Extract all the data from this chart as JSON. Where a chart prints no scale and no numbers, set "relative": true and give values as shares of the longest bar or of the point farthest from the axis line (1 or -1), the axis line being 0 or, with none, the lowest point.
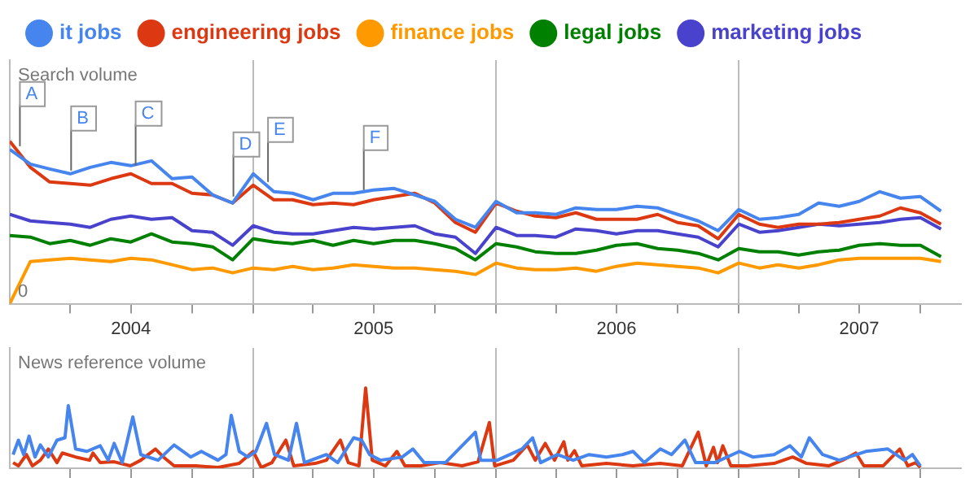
{
  "chart_data": [
    {
      "type": "line",
      "relative": true,
      "legend": "top",
      "grid": "x",
      "tick_labels": "x",
      "xlim": [
        "2004-01",
        "2007-12"
      ],
      "xticks": [
        {
          "value": "2004-04",
          "label": null
        },
        {
          "value": "2004-07",
          "label": "2004"
        },
        {
          "value": "2004-10",
          "label": null
        },
        {
          "value": "2005-01",
          "label": null
        },
        {
          "value": "2005-04",
          "label": null
        },
        {
          "value": "2005-07",
          "label": "2005"
        },
        {
          "value": "2005-10",
          "label": null
        },
        {
          "value": "2006-01",
          "label": null
        },
        {
          "value": "2006-04",
          "label": null
        },
        {
          "value": "2006-07",
          "label": "2006"
        },
        {
          "value": "2006-10",
          "label": null
        },
        {
          "value": "2007-01",
          "label": null
        },
        {
          "value": "2007-04",
          "label": null
        },
        {
          "value": "2007-07",
          "label": "2007"
        },
        {
          "value": "2007-10",
          "label": null
        }
      ],
      "x": [
        "2004-01",
        "2004-02",
        "2004-03",
        "2004-04",
        "2004-05",
        "2004-06",
        "2004-07",
        "2004-08",
        "2004-09",
        "2004-10",
        "2004-11",
        "2004-12",
        "2005-01",
        "2005-02",
        "2005-03",
        "2005-04",
        "2005-05",
        "2005-06",
        "2005-07",
        "2005-08",
        "2005-09",
        "2005-10",
        "2005-11",
        "2005-12",
        "2006-01",
        "2006-02",
        "2006-03",
        "2006-04",
        "2006-05",
        "2006-06",
        "2006-07",
        "2006-08",
        "2006-09",
        "2006-10",
        "2006-11",
        "2006-12",
        "2007-01",
        "2007-02",
        "2007-03",
        "2007-04",
        "2007-05",
        "2007-06",
        "2007-07",
        "2007-08",
        "2007-09",
        "2007-10",
        "2007-11"
      ],
      "series": [
        {
          "name": "it jobs",
          "color": "#4684ee",
          "values": [
            0.95,
            0.86,
            0.83,
            0.8,
            0.84,
            0.87,
            0.85,
            0.88,
            0.77,
            0.78,
            0.67,
            0.62,
            0.8,
            0.69,
            0.68,
            0.64,
            0.68,
            0.68,
            0.7,
            0.71,
            0.67,
            0.63,
            0.52,
            0.47,
            0.63,
            0.56,
            0.56,
            0.55,
            0.59,
            0.58,
            0.58,
            0.6,
            0.59,
            0.55,
            0.51,
            0.45,
            0.58,
            0.52,
            0.53,
            0.55,
            0.62,
            0.6,
            0.63,
            0.69,
            0.65,
            0.66,
            0.57
          ]
        },
        {
          "name": "engineering jobs",
          "color": "#dc3912",
          "values": [
            1,
            0.84,
            0.75,
            0.74,
            0.73,
            0.77,
            0.8,
            0.74,
            0.74,
            0.68,
            0.67,
            0.62,
            0.73,
            0.64,
            0.64,
            0.61,
            0.62,
            0.61,
            0.64,
            0.66,
            0.68,
            0.62,
            0.5,
            0.44,
            0.62,
            0.57,
            0.54,
            0.53,
            0.56,
            0.52,
            0.52,
            0.52,
            0.55,
            0.5,
            0.48,
            0.4,
            0.55,
            0.49,
            0.47,
            0.49,
            0.49,
            0.5,
            0.52,
            0.54,
            0.59,
            0.56,
            0.49
          ]
        },
        {
          "name": "finance jobs",
          "color": "#ff9900",
          "values": [
            0,
            0.26,
            0.27,
            0.28,
            0.27,
            0.26,
            0.28,
            0.27,
            0.24,
            0.21,
            0.22,
            0.19,
            0.22,
            0.21,
            0.23,
            0.21,
            0.22,
            0.24,
            0.23,
            0.22,
            0.22,
            0.21,
            0.2,
            0.18,
            0.25,
            0.22,
            0.21,
            0.21,
            0.22,
            0.2,
            0.23,
            0.25,
            0.24,
            0.23,
            0.22,
            0.19,
            0.25,
            0.22,
            0.24,
            0.22,
            0.24,
            0.27,
            0.28,
            0.28,
            0.28,
            0.28,
            0.26
          ]
        },
        {
          "name": "legal jobs",
          "color": "#008000",
          "values": [
            0.42,
            0.41,
            0.37,
            0.39,
            0.36,
            0.4,
            0.38,
            0.43,
            0.38,
            0.37,
            0.35,
            0.27,
            0.4,
            0.38,
            0.37,
            0.39,
            0.36,
            0.39,
            0.37,
            0.39,
            0.39,
            0.37,
            0.34,
            0.27,
            0.37,
            0.35,
            0.32,
            0.31,
            0.31,
            0.33,
            0.36,
            0.37,
            0.34,
            0.33,
            0.31,
            0.27,
            0.34,
            0.32,
            0.32,
            0.3,
            0.32,
            0.33,
            0.36,
            0.37,
            0.36,
            0.36,
            0.29
          ]
        },
        {
          "name": "marketing jobs",
          "color": "#4942cc",
          "values": [
            0.55,
            0.51,
            0.5,
            0.49,
            0.47,
            0.52,
            0.54,
            0.52,
            0.53,
            0.45,
            0.44,
            0.36,
            0.48,
            0.44,
            0.43,
            0.43,
            0.45,
            0.47,
            0.46,
            0.47,
            0.48,
            0.43,
            0.41,
            0.31,
            0.47,
            0.42,
            0.42,
            0.41,
            0.46,
            0.45,
            0.43,
            0.45,
            0.45,
            0.43,
            0.41,
            0.35,
            0.49,
            0.44,
            0.45,
            0.47,
            0.49,
            0.48,
            0.49,
            0.5,
            0.52,
            0.53,
            0.46
          ]
        }
      ],
      "annotations": [
        "Search volume",
        "0",
        {
          "text": "A",
          "x": "2004-01-15",
          "y": 0.97
        },
        {
          "text": "B",
          "x": "2004-04-01",
          "y": 0.82
        },
        {
          "text": "C",
          "x": "2004-07-07",
          "y": 0.85
        },
        {
          "text": "D",
          "x": "2004-12-01",
          "y": 0.66
        },
        {
          "text": "E",
          "x": "2005-01-22",
          "y": 0.75
        },
        {
          "text": "F",
          "x": "2005-06-15",
          "y": 0.7
        }
      ]
    },
    {
      "type": "line",
      "relative": true,
      "grid": "x",
      "tick_labels": false,
      "xlim": [
        "2004-01",
        "2007-12"
      ],
      "xticks": [
        {
          "value": "2004-04",
          "label": null
        },
        {
          "value": "2004-07",
          "label": null
        },
        {
          "value": "2004-10",
          "label": null
        },
        {
          "value": "2005-01",
          "label": null
        },
        {
          "value": "2005-04",
          "label": null
        },
        {
          "value": "2005-07",
          "label": null
        },
        {
          "value": "2005-10",
          "label": null
        },
        {
          "value": "2006-01",
          "label": null
        },
        {
          "value": "2006-04",
          "label": null
        },
        {
          "value": "2006-07",
          "label": null
        },
        {
          "value": "2006-10",
          "label": null
        },
        {
          "value": "2007-01",
          "label": null
        },
        {
          "value": "2007-04",
          "label": null
        },
        {
          "value": "2007-07",
          "label": null
        },
        {
          "value": "2007-10",
          "label": null
        }
      ],
      "series": [
        {
          "color": "#4684ee",
          "x": [
            "2004-01-06",
            "2004-01-14",
            "2004-01-22",
            "2004-01-30",
            "2004-02-08",
            "2004-02-16",
            "2004-02-28",
            "2004-03-12",
            "2004-03-24",
            "2004-03-29",
            "2004-04-09",
            "2004-04-26",
            "2004-05-16",
            "2004-05-28",
            "2004-06-06",
            "2004-06-18",
            "2004-07-04",
            "2004-07-16",
            "2004-08-11",
            "2004-09-04",
            "2004-09-29",
            "2004-10-15",
            "2004-11-09",
            "2004-11-21",
            "2004-11-29",
            "2004-12-11",
            "2004-12-24",
            "2005-01-05",
            "2005-01-21",
            "2005-02-02",
            "2005-02-23",
            "2005-03-07",
            "2005-03-19",
            "2005-04-21",
            "2005-05-08",
            "2005-06-01",
            "2005-06-13",
            "2005-06-25",
            "2005-07-11",
            "2005-08-13",
            "2005-08-29",
            "2005-09-15",
            "2005-10-17",
            "2005-12-01",
            "2005-12-09",
            "2006-01-03",
            "2006-02-09",
            "2006-02-25",
            "2006-03-09",
            "2006-04-03",
            "2006-04-27",
            "2006-05-21",
            "2006-06-16",
            "2006-07-10",
            "2006-07-26",
            "2006-08-12",
            "2006-09-05",
            "2006-09-22",
            "2006-10-12",
            "2006-10-28",
            "2006-11-26",
            "2007-01-02",
            "2007-01-22",
            "2007-02-23",
            "2007-03-19",
            "2007-04-05",
            "2007-04-17",
            "2007-05-07",
            "2007-06-01",
            "2007-07-11",
            "2007-08-13",
            "2007-09-07",
            "2007-09-19",
            "2007-10-01"
          ],
          "values": [
            0.17,
            0.35,
            0.17,
            0.4,
            0.14,
            0.29,
            0.14,
            0.35,
            0.38,
            0.78,
            0.24,
            0.21,
            0.28,
            0.1,
            0.31,
            0.07,
            0.64,
            0.17,
            0.1,
            0.29,
            0.14,
            0.21,
            0.1,
            0.17,
            0.66,
            0.21,
            0.14,
            0.21,
            0.56,
            0.17,
            0.1,
            0.56,
            0.07,
            0.17,
            0.07,
            0.38,
            0.35,
            0.17,
            0.1,
            0.14,
            0.24,
            0.07,
            0.07,
            0.45,
            0.1,
            0.1,
            0.24,
            0.38,
            0.07,
            0.17,
            0.1,
            0.17,
            0.14,
            0.17,
            0.21,
            0.07,
            0.24,
            0.17,
            0.35,
            0.07,
            0.07,
            0.21,
            0.14,
            0.17,
            0.28,
            0.14,
            0.38,
            0.17,
            0.1,
            0.21,
            0.24,
            0.1,
            0.17,
            0.03
          ]
        },
        {
          "color": "#dc3912",
          "x": [
            "2004-01-06",
            "2004-01-14",
            "2004-01-26",
            "2004-02-04",
            "2004-02-16",
            "2004-02-28",
            "2004-03-12",
            "2004-03-20",
            "2004-04-09",
            "2004-04-30",
            "2004-05-05",
            "2004-05-16",
            "2004-06-06",
            "2004-06-30",
            "2004-07-16",
            "2004-08-07",
            "2004-08-19",
            "2004-09-04",
            "2004-10-07",
            "2004-11-09",
            "2004-12-11",
            "2005-01-01",
            "2005-01-13",
            "2005-01-29",
            "2005-02-19",
            "2005-03-03",
            "2005-04-04",
            "2005-04-21",
            "2005-05-12",
            "2005-05-24",
            "2005-06-09",
            "2005-06-19",
            "2005-06-29",
            "2005-07-19",
            "2005-08-05",
            "2005-08-17",
            "2005-09-10",
            "2005-10-09",
            "2005-11-11",
            "2005-12-05",
            "2005-12-22",
            "2005-12-30",
            "2006-01-27",
            "2006-02-17",
            "2006-03-01",
            "2006-03-16",
            "2006-03-30",
            "2006-04-13",
            "2006-04-19",
            "2006-04-29",
            "2006-05-10",
            "2006-06-16",
            "2006-07-26",
            "2006-09-05",
            "2006-10-08",
            "2006-11-01",
            "2006-11-13",
            "2006-11-24",
            "2006-11-30",
            "2006-12-08",
            "2006-12-20",
            "2007-01-14",
            "2007-02-23",
            "2007-03-23",
            "2007-04-13",
            "2007-05-16",
            "2007-06-06",
            "2007-06-26",
            "2007-07-08",
            "2007-08-06",
            "2007-08-31",
            "2007-09-12",
            "2007-09-24",
            "2007-10-01"
          ],
          "values": [
            0.07,
            0.03,
            0.17,
            0.03,
            0.1,
            0.24,
            0.07,
            0.19,
            0.14,
            0.1,
            0.19,
            0.07,
            0.08,
            0.03,
            0.1,
            0.24,
            0.14,
            0.03,
            0.03,
            0.01,
            0.06,
            0.21,
            0.01,
            0.07,
            0.35,
            0.03,
            0.06,
            0.1,
            0.35,
            0.07,
            0.03,
            1,
            0.1,
            0.03,
            0.21,
            0.03,
            0.03,
            0.07,
            0.03,
            0.08,
            0.57,
            0.03,
            0.1,
            0.29,
            0.1,
            0.31,
            0.1,
            0.33,
            0.1,
            0.22,
            0.03,
            0.06,
            0.03,
            0.06,
            0.03,
            0.45,
            0.03,
            0.26,
            0.07,
            0.28,
            0.03,
            0.03,
            0.06,
            0.14,
            0.06,
            0.03,
            0.1,
            0.19,
            0.03,
            0.03,
            0.24,
            0.03,
            0.07,
            0.01
          ]
        }
      ],
      "annotations": [
        "News reference volume"
      ]
    }
  ]
}
